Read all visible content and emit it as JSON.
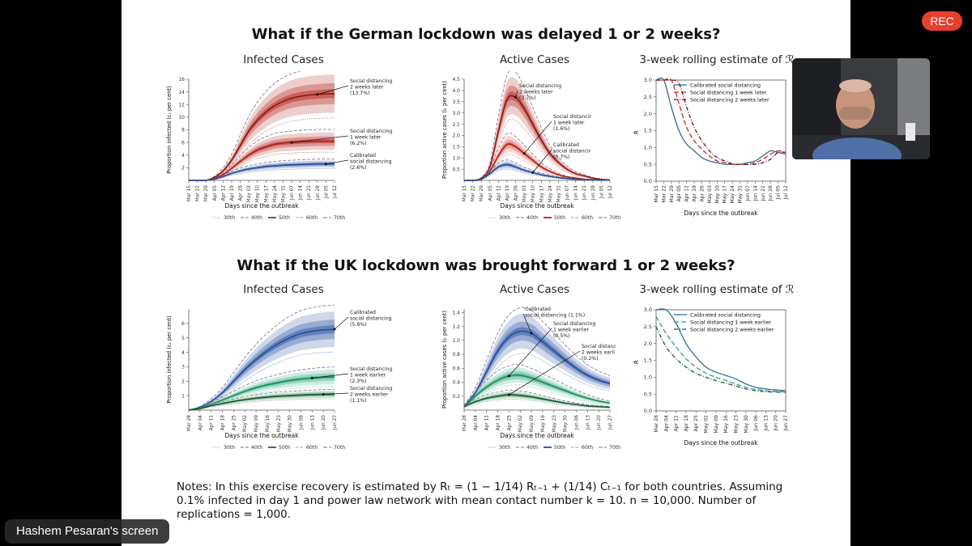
{
  "window": {
    "rec_label": "REC",
    "screen_label": "Hashem Pesaran's screen",
    "video_tile": {
      "icon": "participant-video"
    }
  },
  "colors": {
    "german_red": "#b22018",
    "uk_blue": "#244f9e",
    "uk_green": "#1e7a48",
    "rec_red": "#e8402f"
  },
  "slide": {
    "title_germany": "What if the German lockdown was delayed 1 or 2 weeks?",
    "title_uk": "What if the UK lockdown was brought forward 1 or 2 weeks?",
    "subtitle_infected": "Infected Cases",
    "subtitle_active": "Active Cases",
    "subtitle_rolling": "3-week rolling estimate of ℛ",
    "notes_line1": "Notes: In this exercise recovery is estimated by Rₜ = (1 − 1/14) Rₜ₋₁ + (1/14) Cₜ₋₁ for both countries. Assuming",
    "notes_line2": "0.1% infected in day 1 and power law network with mean contact number k = 10. n = 10,000. Number of",
    "notes_line3": "replications = 1,000."
  },
  "chart_data": [
    {
      "id": "germany-infected",
      "type": "area",
      "title": "Infected Cases",
      "xlabel": "Days since the outbreak",
      "ylabel": "Proportion infected (cₜ per cent)",
      "ylim": [
        0,
        16
      ],
      "yticks": [
        "2",
        "4",
        "6",
        "8",
        "10",
        "12",
        "14",
        "16"
      ],
      "xticks": [
        "Mar 15",
        "Mar 22",
        "Mar 29",
        "Apr 05",
        "Apr 12",
        "Apr 19",
        "Apr 26",
        "May 03",
        "May 10",
        "May 17",
        "May 24",
        "May 31",
        "Jun 07",
        "Jun 14",
        "Jun 21",
        "Jun 28",
        "Jul 05",
        "Jul 12"
      ],
      "legend": [
        "30th",
        "40th",
        "50th",
        "60th",
        "70th"
      ],
      "series": [
        {
          "values": [
            0,
            0,
            0,
            0.5,
            1.5,
            3.2,
            5.5,
            7.8,
            9.5,
            10.8,
            11.8,
            12.5,
            13.0,
            13.3,
            13.5,
            13.6,
            13.7,
            13.7
          ],
          "annotation": [
            "Social distancing",
            "2 weeks later",
            "(13.7%)"
          ]
        },
        {
          "values": [
            0,
            0,
            0,
            0.3,
            0.9,
            1.9,
            3.0,
            4.0,
            4.8,
            5.3,
            5.7,
            5.9,
            6.0,
            6.1,
            6.15,
            6.2,
            6.2,
            6.2
          ],
          "annotation": [
            "Social distancing",
            "1 week later",
            "(6.2%)"
          ]
        },
        {
          "values": [
            0,
            0,
            0,
            0.2,
            0.6,
            1.1,
            1.5,
            1.8,
            2.0,
            2.2,
            2.3,
            2.4,
            2.45,
            2.5,
            2.55,
            2.6,
            2.6,
            2.6
          ],
          "annotation": [
            "Calibrated",
            "social distancing",
            "(2.6%)"
          ]
        }
      ]
    },
    {
      "id": "germany-active",
      "type": "area",
      "title": "Active Cases",
      "xlabel": "Days since the outbreak",
      "ylabel": "Proportion active cases (iₜ per cent)",
      "ylim": [
        0,
        4.5
      ],
      "yticks": [
        "0.5",
        "1.0",
        "1.5",
        "2.0",
        "2.5",
        "3.0",
        "3.5",
        "4.0",
        "4.5"
      ],
      "xticks": [
        "Mar 15",
        "Mar 22",
        "Mar 29",
        "Apr 05",
        "Apr 12",
        "Apr 19",
        "Apr 26",
        "May 03",
        "May 10",
        "May 17",
        "May 24",
        "May 31",
        "Jun 07",
        "Jun 14",
        "Jun 21",
        "Jun 28",
        "Jul 05",
        "Jul 12"
      ],
      "legend": [
        "30th",
        "40th",
        "50th",
        "60th",
        "70th"
      ],
      "series": [
        {
          "values": [
            0,
            0,
            0.1,
            0.6,
            2.2,
            3.6,
            3.7,
            3.2,
            2.5,
            1.8,
            1.2,
            0.8,
            0.5,
            0.3,
            0.2,
            0.1,
            0.05,
            0.02
          ],
          "annotation": [
            "Social distancing",
            "2 weeks later",
            "(3.7%)"
          ]
        },
        {
          "values": [
            0,
            0,
            0.05,
            0.4,
            1.1,
            1.6,
            1.5,
            1.2,
            0.9,
            0.6,
            0.4,
            0.25,
            0.15,
            0.1,
            0.05,
            0.03,
            0.02,
            0.01
          ],
          "annotation": [
            "Social distancir",
            "1 week later",
            "(1.6%)"
          ]
        },
        {
          "values": [
            0,
            0,
            0.05,
            0.3,
            0.6,
            0.7,
            0.6,
            0.45,
            0.35,
            0.25,
            0.18,
            0.12,
            0.08,
            0.05,
            0.03,
            0.02,
            0.01,
            0.01
          ],
          "annotation": [
            "Calibrated",
            "social distancir",
            "(0.7%)"
          ]
        }
      ]
    },
    {
      "id": "germany-rolling",
      "type": "line",
      "title": "3-week rolling estimate",
      "xlabel": "Days since the outbreak",
      "ylabel": "R̂",
      "ylim": [
        0,
        3
      ],
      "yticks": [
        "0.0",
        "0.5",
        "1.0",
        "1.5",
        "2.0",
        "2.5",
        "3.0"
      ],
      "xticks": [
        "Mar 15",
        "Mar 22",
        "Mar 29",
        "Apr 05",
        "Apr 12",
        "Apr 19",
        "Apr 26",
        "May 03",
        "May 10",
        "May 17",
        "May 24",
        "May 31",
        "Jun 07",
        "Jun 14",
        "Jun 21",
        "Jun 28",
        "Jul 05",
        "Jul 12"
      ],
      "series": [
        {
          "name": "Calibrated social distancing",
          "values": [
            3.0,
            3.0,
            2.2,
            1.5,
            1.1,
            0.9,
            0.7,
            0.6,
            0.55,
            0.5,
            0.5,
            0.5,
            0.55,
            0.6,
            0.75,
            0.9,
            0.85,
            0.8
          ]
        },
        {
          "name": "Social distancing 1 week later",
          "values": [
            3.0,
            3.0,
            3.0,
            2.3,
            1.6,
            1.2,
            0.95,
            0.75,
            0.6,
            0.55,
            0.5,
            0.5,
            0.5,
            0.55,
            0.65,
            0.8,
            0.9,
            0.85
          ]
        },
        {
          "name": "Social distancing 2 weeks later",
          "values": [
            3.0,
            3.0,
            3.0,
            2.9,
            2.2,
            1.6,
            1.2,
            0.9,
            0.7,
            0.6,
            0.52,
            0.5,
            0.5,
            0.5,
            0.55,
            0.65,
            0.85,
            0.85
          ]
        }
      ]
    },
    {
      "id": "uk-infected",
      "type": "area",
      "title": "Infected Cases",
      "xlabel": "Days since the outbreak",
      "ylabel": "Proportion infected (cₜ per cent)",
      "ylim": [
        0,
        7
      ],
      "yticks": [
        "1",
        "2",
        "3",
        "4",
        "5",
        "6"
      ],
      "xticks": [
        "Mar 28",
        "Apr 04",
        "Apr 11",
        "Apr 18",
        "Apr 25",
        "May 02",
        "May 09",
        "May 16",
        "May 23",
        "May 30",
        "Jun 06",
        "Jun 13",
        "Jun 20",
        "Jun 27"
      ],
      "legend": [
        "30th",
        "40th",
        "50th",
        "60th",
        "70th"
      ],
      "series": [
        {
          "values": [
            0,
            0.2,
            0.6,
            1.2,
            2.0,
            2.8,
            3.5,
            4.1,
            4.6,
            5.0,
            5.3,
            5.45,
            5.55,
            5.6
          ],
          "annotation": [
            "Calibrated",
            "social distancing",
            "(5.6%)"
          ]
        },
        {
          "values": [
            0,
            0.15,
            0.4,
            0.7,
            1.0,
            1.3,
            1.55,
            1.75,
            1.9,
            2.05,
            2.15,
            2.22,
            2.27,
            2.3
          ],
          "annotation": [
            "Social distancing",
            "1 week earlier",
            "(2.3%)"
          ]
        },
        {
          "values": [
            0,
            0.1,
            0.3,
            0.45,
            0.6,
            0.72,
            0.82,
            0.9,
            0.96,
            1.0,
            1.04,
            1.07,
            1.09,
            1.1
          ],
          "annotation": [
            "Social distancing",
            "2 weeks earlier",
            "(1.1%)"
          ]
        }
      ]
    },
    {
      "id": "uk-active",
      "type": "area",
      "title": "Active Cases",
      "xlabel": "Days since the outbreak",
      "ylabel": "Proportion active cases (iₜ per cent)",
      "ylim": [
        0,
        1.45
      ],
      "yticks": [
        "0.2",
        "0.4",
        "0.6",
        "0.8",
        "1.0",
        "1.2",
        "1.4"
      ],
      "xticks": [
        "Mar 28",
        "Apr 04",
        "Apr 11",
        "Apr 18",
        "Apr 25",
        "May 02",
        "May 09",
        "May 16",
        "May 23",
        "May 30",
        "Jun 06",
        "Jun 13",
        "Jun 20",
        "Jun 27"
      ],
      "legend": [
        "30th",
        "40th",
        "50th",
        "60th",
        "70th"
      ],
      "series": [
        {
          "values": [
            0.05,
            0.25,
            0.55,
            0.85,
            1.05,
            1.13,
            1.1,
            0.98,
            0.85,
            0.72,
            0.6,
            0.5,
            0.43,
            0.38
          ],
          "annotation": [
            "Calibrated",
            "social distancing (1.1%)"
          ]
        },
        {
          "values": [
            0.05,
            0.2,
            0.33,
            0.43,
            0.49,
            0.5,
            0.46,
            0.4,
            0.34,
            0.28,
            0.22,
            0.17,
            0.13,
            0.1
          ],
          "annotation": [
            "Social distancing",
            "1 week earlier",
            "(0.5%)"
          ]
        },
        {
          "values": [
            0.05,
            0.12,
            0.17,
            0.2,
            0.22,
            0.21,
            0.19,
            0.16,
            0.13,
            0.1,
            0.08,
            0.06,
            0.05,
            0.04
          ],
          "annotation": [
            "Social distanc",
            "2 weeks earli",
            "(0.2%)"
          ]
        }
      ]
    },
    {
      "id": "uk-rolling",
      "type": "line",
      "title": "3-week rolling estimate",
      "xlabel": "Days since the outbreak",
      "ylabel": "R̂",
      "ylim": [
        0,
        3
      ],
      "yticks": [
        "0.0",
        "0.5",
        "1.0",
        "1.5",
        "2.0",
        "2.5",
        "3.0"
      ],
      "xticks": [
        "Mar 28",
        "Apr 04",
        "Apr 11",
        "Apr 18",
        "Apr 25",
        "May 02",
        "May 09",
        "May 16",
        "May 23",
        "May 30",
        "Jun 06",
        "Jun 13",
        "Jun 20",
        "Jun 27"
      ],
      "series": [
        {
          "name": "Calibrated social distancing",
          "values": [
            3.0,
            3.0,
            2.6,
            2.0,
            1.6,
            1.3,
            1.15,
            1.05,
            0.95,
            0.8,
            0.7,
            0.65,
            0.62,
            0.6
          ]
        },
        {
          "name": "Social distancing 1 week earlier",
          "values": [
            2.8,
            2.3,
            1.9,
            1.55,
            1.3,
            1.12,
            1.0,
            0.9,
            0.8,
            0.7,
            0.64,
            0.6,
            0.58,
            0.58
          ]
        },
        {
          "name": "Social distancing 2 weeks earlier",
          "values": [
            2.5,
            1.9,
            1.55,
            1.3,
            1.12,
            1.0,
            0.9,
            0.82,
            0.74,
            0.65,
            0.6,
            0.57,
            0.56,
            0.55
          ]
        }
      ]
    }
  ]
}
